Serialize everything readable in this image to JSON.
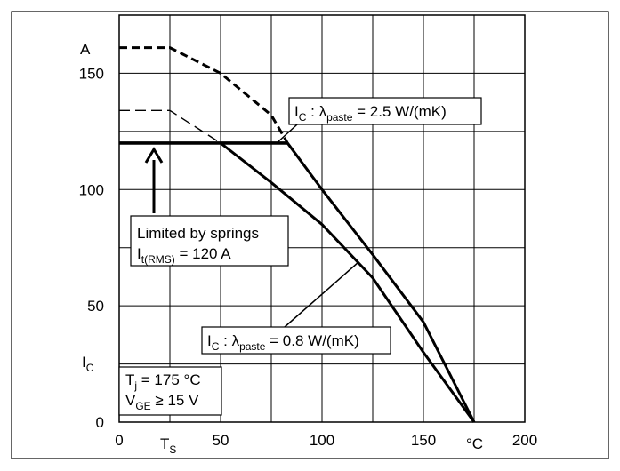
{
  "chart_data": {
    "type": "line",
    "title": "",
    "y_unit": "A",
    "y_symbol": "I",
    "y_symbol_sub": "C",
    "x_unit": "°C",
    "x_symbol": "T",
    "x_symbol_sub": "S",
    "xlim": [
      0,
      200
    ],
    "ylim": [
      0,
      175
    ],
    "xticks": [
      0,
      50,
      100,
      150,
      200
    ],
    "yticks": [
      0,
      50,
      100,
      150
    ],
    "x_grid": [
      25,
      50,
      75,
      100,
      125,
      150,
      175
    ],
    "y_grid": [
      25,
      50,
      75,
      100,
      125,
      150
    ],
    "grid": true,
    "series": [
      {
        "style": "thick-dashed",
        "points": [
          [
            0,
            161
          ],
          [
            25,
            161
          ],
          [
            50,
            150
          ],
          [
            75,
            132
          ],
          [
            83,
            120
          ]
        ]
      },
      {
        "style": "thick-solid",
        "points": [
          [
            83,
            120
          ],
          [
            100,
            100
          ],
          [
            125,
            72
          ],
          [
            150,
            43
          ],
          [
            175,
            0
          ]
        ]
      },
      {
        "style": "thin-dashed",
        "points": [
          [
            0,
            134
          ],
          [
            25,
            134
          ],
          [
            50,
            120
          ]
        ]
      },
      {
        "style": "thick-solid",
        "points": [
          [
            50,
            120
          ],
          [
            75,
            103
          ],
          [
            100,
            85
          ],
          [
            125,
            62
          ],
          [
            150,
            30
          ],
          [
            175,
            0
          ]
        ]
      },
      {
        "style": "extra-thick-solid",
        "points": [
          [
            0,
            120
          ],
          [
            83,
            120
          ]
        ]
      }
    ],
    "annotations": {
      "top_label": {
        "main": "I",
        "sub": "C",
        "middle": " : λ",
        "sub2": "paste",
        "tail": " = 2.5 W/(mK)"
      },
      "bottom_label": {
        "main": "I",
        "sub": "C",
        "middle": " : λ",
        "sub2": "paste",
        "tail": " = 0.8 W/(mK)"
      },
      "springs_line1": "Limited by springs",
      "springs_line2_main": "I",
      "springs_line2_sub": "t(RMS)",
      "springs_line2_tail": " = 120 A",
      "tj_main": "T",
      "tj_sub": "j",
      "tj_tail": " = 175 °C",
      "vge_main": "V",
      "vge_sub": "GE",
      "vge_tail": " ≥ 15 V"
    }
  }
}
